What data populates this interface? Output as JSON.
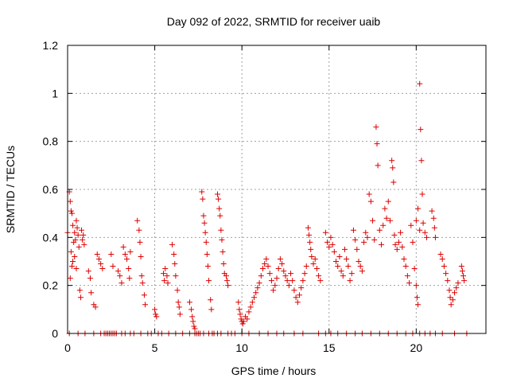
{
  "chart_data": {
    "type": "scatter",
    "title": "Day 092 of 2022, SRMTID for receiver uaib",
    "xlabel": "GPS time / hours",
    "ylabel": "SRMTID / TECUs",
    "xlim": [
      0,
      24
    ],
    "ylim": [
      0,
      1.2
    ],
    "xticks": [
      0,
      5,
      10,
      15,
      20
    ],
    "xtick_labels": [
      "0",
      "5",
      "10",
      "15",
      "20"
    ],
    "yticks": [
      0,
      0.2,
      0.4,
      0.6,
      0.8,
      1,
      1.2
    ],
    "ytick_labels": [
      "0",
      "0.2",
      "0.4",
      "0.6",
      "0.8",
      "1",
      "1.2"
    ],
    "grid": true,
    "marker": "plus",
    "color": "#dd0000",
    "series": [
      {
        "name": "SRMTID",
        "points": [
          [
            0.0,
            0.42
          ],
          [
            0.1,
            0.59
          ],
          [
            0.15,
            0.55
          ],
          [
            0.2,
            0.51
          ],
          [
            0.25,
            0.5
          ],
          [
            0.3,
            0.45
          ],
          [
            0.35,
            0.38
          ],
          [
            0.2,
            0.34
          ],
          [
            0.3,
            0.3
          ],
          [
            0.15,
            0.23
          ],
          [
            0.25,
            0.28
          ],
          [
            0.4,
            0.42
          ],
          [
            0.45,
            0.39
          ],
          [
            0.5,
            0.47
          ],
          [
            0.55,
            0.44
          ],
          [
            0.6,
            0.41
          ],
          [
            0.65,
            0.36
          ],
          [
            0.7,
            0.18
          ],
          [
            0.75,
            0.15
          ],
          [
            0.8,
            0.43
          ],
          [
            0.85,
            0.39
          ],
          [
            0.9,
            0.41
          ],
          [
            0.95,
            0.37
          ],
          [
            0.4,
            0.32
          ],
          [
            0.5,
            0.27
          ],
          [
            1.2,
            0.26
          ],
          [
            1.3,
            0.23
          ],
          [
            1.35,
            0.17
          ],
          [
            1.5,
            0.12
          ],
          [
            1.6,
            0.11
          ],
          [
            1.7,
            0.33
          ],
          [
            1.8,
            0.31
          ],
          [
            1.9,
            0.29
          ],
          [
            2.0,
            0.27
          ],
          [
            2.5,
            0.33
          ],
          [
            2.6,
            0.28
          ],
          [
            2.9,
            0.26
          ],
          [
            3.0,
            0.24
          ],
          [
            3.1,
            0.21
          ],
          [
            3.2,
            0.36
          ],
          [
            3.3,
            0.33
          ],
          [
            3.4,
            0.31
          ],
          [
            3.5,
            0.27
          ],
          [
            3.55,
            0.23
          ],
          [
            3.6,
            0.34
          ],
          [
            4.0,
            0.47
          ],
          [
            4.1,
            0.43
          ],
          [
            4.15,
            0.38
          ],
          [
            4.2,
            0.32
          ],
          [
            4.25,
            0.24
          ],
          [
            4.3,
            0.21
          ],
          [
            4.4,
            0.16
          ],
          [
            4.45,
            0.12
          ],
          [
            5.0,
            0.1
          ],
          [
            5.05,
            0.08
          ],
          [
            5.1,
            0.07
          ],
          [
            5.5,
            0.25
          ],
          [
            5.55,
            0.22
          ],
          [
            5.6,
            0.27
          ],
          [
            5.7,
            0.24
          ],
          [
            5.75,
            0.21
          ],
          [
            6.0,
            0.37
          ],
          [
            6.1,
            0.33
          ],
          [
            6.15,
            0.29
          ],
          [
            6.2,
            0.24
          ],
          [
            6.3,
            0.18
          ],
          [
            6.35,
            0.13
          ],
          [
            6.4,
            0.11
          ],
          [
            6.45,
            0.08
          ],
          [
            7.0,
            0.13
          ],
          [
            7.1,
            0.1
          ],
          [
            7.15,
            0.07
          ],
          [
            7.2,
            0.05
          ],
          [
            7.25,
            0.03
          ],
          [
            7.3,
            0.02
          ],
          [
            7.7,
            0.59
          ],
          [
            7.75,
            0.56
          ],
          [
            7.8,
            0.49
          ],
          [
            7.85,
            0.46
          ],
          [
            7.9,
            0.42
          ],
          [
            7.95,
            0.38
          ],
          [
            8.0,
            0.33
          ],
          [
            8.05,
            0.28
          ],
          [
            8.1,
            0.22
          ],
          [
            8.2,
            0.14
          ],
          [
            8.25,
            0.1
          ],
          [
            8.6,
            0.58
          ],
          [
            8.65,
            0.56
          ],
          [
            8.7,
            0.52
          ],
          [
            8.75,
            0.49
          ],
          [
            8.8,
            0.43
          ],
          [
            8.85,
            0.39
          ],
          [
            8.9,
            0.34
          ],
          [
            8.95,
            0.29
          ],
          [
            9.0,
            0.25
          ],
          [
            9.1,
            0.24
          ],
          [
            9.15,
            0.22
          ],
          [
            9.2,
            0.2
          ],
          [
            9.8,
            0.13
          ],
          [
            9.85,
            0.1
          ],
          [
            9.9,
            0.08
          ],
          [
            9.95,
            0.06
          ],
          [
            10.0,
            0.05
          ],
          [
            10.05,
            0.04
          ],
          [
            10.1,
            0.05
          ],
          [
            10.2,
            0.07
          ],
          [
            10.3,
            0.06
          ],
          [
            10.4,
            0.09
          ],
          [
            10.5,
            0.11
          ],
          [
            10.6,
            0.13
          ],
          [
            10.7,
            0.15
          ],
          [
            10.8,
            0.17
          ],
          [
            10.9,
            0.19
          ],
          [
            11.0,
            0.21
          ],
          [
            11.1,
            0.24
          ],
          [
            11.2,
            0.27
          ],
          [
            11.3,
            0.29
          ],
          [
            11.4,
            0.31
          ],
          [
            11.5,
            0.28
          ],
          [
            11.6,
            0.25
          ],
          [
            11.7,
            0.22
          ],
          [
            11.8,
            0.18
          ],
          [
            11.9,
            0.2
          ],
          [
            12.0,
            0.23
          ],
          [
            12.1,
            0.27
          ],
          [
            12.2,
            0.31
          ],
          [
            12.3,
            0.29
          ],
          [
            12.4,
            0.26
          ],
          [
            12.5,
            0.24
          ],
          [
            12.6,
            0.22
          ],
          [
            12.7,
            0.2
          ],
          [
            12.8,
            0.25
          ],
          [
            12.9,
            0.22
          ],
          [
            13.0,
            0.18
          ],
          [
            13.1,
            0.15
          ],
          [
            13.2,
            0.13
          ],
          [
            13.3,
            0.16
          ],
          [
            13.4,
            0.19
          ],
          [
            13.5,
            0.22
          ],
          [
            13.6,
            0.25
          ],
          [
            13.7,
            0.28
          ],
          [
            13.8,
            0.44
          ],
          [
            13.85,
            0.41
          ],
          [
            13.9,
            0.38
          ],
          [
            13.95,
            0.35
          ],
          [
            14.0,
            0.32
          ],
          [
            14.1,
            0.29
          ],
          [
            14.2,
            0.31
          ],
          [
            14.3,
            0.27
          ],
          [
            14.4,
            0.24
          ],
          [
            14.5,
            0.22
          ],
          [
            14.8,
            0.42
          ],
          [
            14.9,
            0.38
          ],
          [
            15.0,
            0.36
          ],
          [
            15.1,
            0.4
          ],
          [
            15.2,
            0.37
          ],
          [
            15.3,
            0.34
          ],
          [
            15.4,
            0.3
          ],
          [
            15.5,
            0.28
          ],
          [
            15.6,
            0.32
          ],
          [
            15.7,
            0.26
          ],
          [
            15.8,
            0.24
          ],
          [
            15.9,
            0.35
          ],
          [
            16.0,
            0.31
          ],
          [
            16.1,
            0.28
          ],
          [
            16.2,
            0.22
          ],
          [
            16.3,
            0.25
          ],
          [
            16.4,
            0.43
          ],
          [
            16.5,
            0.39
          ],
          [
            16.6,
            0.35
          ],
          [
            16.7,
            0.3
          ],
          [
            16.8,
            0.28
          ],
          [
            16.9,
            0.26
          ],
          [
            17.0,
            0.38
          ],
          [
            17.1,
            0.42
          ],
          [
            17.2,
            0.4
          ],
          [
            17.3,
            0.58
          ],
          [
            17.4,
            0.55
          ],
          [
            17.5,
            0.47
          ],
          [
            17.6,
            0.39
          ],
          [
            17.7,
            0.86
          ],
          [
            17.75,
            0.79
          ],
          [
            17.8,
            0.7
          ],
          [
            17.9,
            0.43
          ],
          [
            18.0,
            0.37
          ],
          [
            18.1,
            0.45
          ],
          [
            18.2,
            0.52
          ],
          [
            18.3,
            0.48
          ],
          [
            18.4,
            0.55
          ],
          [
            18.5,
            0.47
          ],
          [
            18.6,
            0.72
          ],
          [
            18.65,
            0.69
          ],
          [
            18.7,
            0.63
          ],
          [
            18.75,
            0.41
          ],
          [
            18.8,
            0.37
          ],
          [
            18.9,
            0.35
          ],
          [
            19.0,
            0.38
          ],
          [
            19.1,
            0.42
          ],
          [
            19.2,
            0.36
          ],
          [
            19.3,
            0.31
          ],
          [
            19.4,
            0.28
          ],
          [
            19.5,
            0.24
          ],
          [
            19.6,
            0.21
          ],
          [
            19.7,
            0.45
          ],
          [
            19.8,
            0.38
          ],
          [
            19.9,
            0.27
          ],
          [
            20.0,
            0.2
          ],
          [
            20.05,
            0.15
          ],
          [
            20.1,
            0.12
          ],
          [
            20.2,
            1.04
          ],
          [
            20.25,
            0.85
          ],
          [
            20.3,
            0.72
          ],
          [
            20.35,
            0.58
          ],
          [
            20.0,
            0.47
          ],
          [
            20.1,
            0.52
          ],
          [
            20.2,
            0.43
          ],
          [
            20.4,
            0.46
          ],
          [
            20.5,
            0.42
          ],
          [
            20.6,
            0.4
          ],
          [
            20.9,
            0.51
          ],
          [
            21.0,
            0.48
          ],
          [
            21.05,
            0.44
          ],
          [
            21.1,
            0.4
          ],
          [
            21.4,
            0.33
          ],
          [
            21.5,
            0.31
          ],
          [
            21.6,
            0.28
          ],
          [
            21.7,
            0.25
          ],
          [
            21.8,
            0.22
          ],
          [
            21.9,
            0.18
          ],
          [
            21.95,
            0.15
          ],
          [
            22.0,
            0.12
          ],
          [
            22.1,
            0.14
          ],
          [
            22.2,
            0.17
          ],
          [
            22.3,
            0.19
          ],
          [
            22.4,
            0.21
          ],
          [
            22.6,
            0.28
          ],
          [
            22.65,
            0.26
          ],
          [
            22.7,
            0.24
          ],
          [
            22.75,
            0.22
          ],
          [
            0.1,
            0.0
          ],
          [
            0.6,
            0.0
          ],
          [
            1.0,
            0.0
          ],
          [
            1.5,
            0.0
          ],
          [
            1.9,
            0.0
          ],
          [
            2.1,
            0.0
          ],
          [
            2.2,
            0.0
          ],
          [
            2.3,
            0.0
          ],
          [
            2.4,
            0.0
          ],
          [
            2.5,
            0.0
          ],
          [
            2.6,
            0.0
          ],
          [
            2.7,
            0.0
          ],
          [
            2.8,
            0.0
          ],
          [
            3.1,
            0.0
          ],
          [
            3.3,
            0.0
          ],
          [
            3.6,
            0.0
          ],
          [
            3.8,
            0.0
          ],
          [
            4.2,
            0.0
          ],
          [
            4.6,
            0.0
          ],
          [
            4.8,
            0.0
          ],
          [
            5.2,
            0.0
          ],
          [
            5.4,
            0.0
          ],
          [
            5.8,
            0.0
          ],
          [
            6.2,
            0.0
          ],
          [
            6.6,
            0.0
          ],
          [
            7.0,
            0.0
          ],
          [
            7.3,
            0.0
          ],
          [
            7.4,
            0.0
          ],
          [
            7.5,
            0.0
          ],
          [
            7.6,
            0.0
          ],
          [
            7.8,
            0.0
          ],
          [
            8.1,
            0.0
          ],
          [
            8.3,
            0.0
          ],
          [
            8.4,
            0.0
          ],
          [
            8.6,
            0.0
          ],
          [
            8.8,
            0.0
          ],
          [
            9.2,
            0.0
          ],
          [
            9.4,
            0.0
          ],
          [
            9.6,
            0.0
          ],
          [
            10.0,
            0.0
          ],
          [
            10.4,
            0.0
          ],
          [
            11.0,
            0.0
          ],
          [
            11.5,
            0.0
          ],
          [
            12.0,
            0.0
          ],
          [
            12.4,
            0.0
          ],
          [
            13.0,
            0.0
          ],
          [
            13.5,
            0.0
          ],
          [
            14.4,
            0.0
          ],
          [
            14.8,
            0.0
          ],
          [
            15.1,
            0.0
          ],
          [
            15.5,
            0.0
          ],
          [
            16.0,
            0.0
          ],
          [
            16.5,
            0.0
          ],
          [
            16.9,
            0.0
          ],
          [
            17.4,
            0.0
          ],
          [
            17.9,
            0.0
          ],
          [
            18.4,
            0.0
          ],
          [
            18.9,
            0.0
          ],
          [
            19.4,
            0.0
          ],
          [
            19.8,
            0.0
          ],
          [
            20.2,
            0.0
          ],
          [
            20.5,
            0.0
          ],
          [
            20.8,
            0.0
          ],
          [
            21.1,
            0.0
          ],
          [
            21.5,
            0.0
          ],
          [
            22.2,
            0.0
          ],
          [
            22.9,
            0.0
          ]
        ]
      }
    ]
  }
}
